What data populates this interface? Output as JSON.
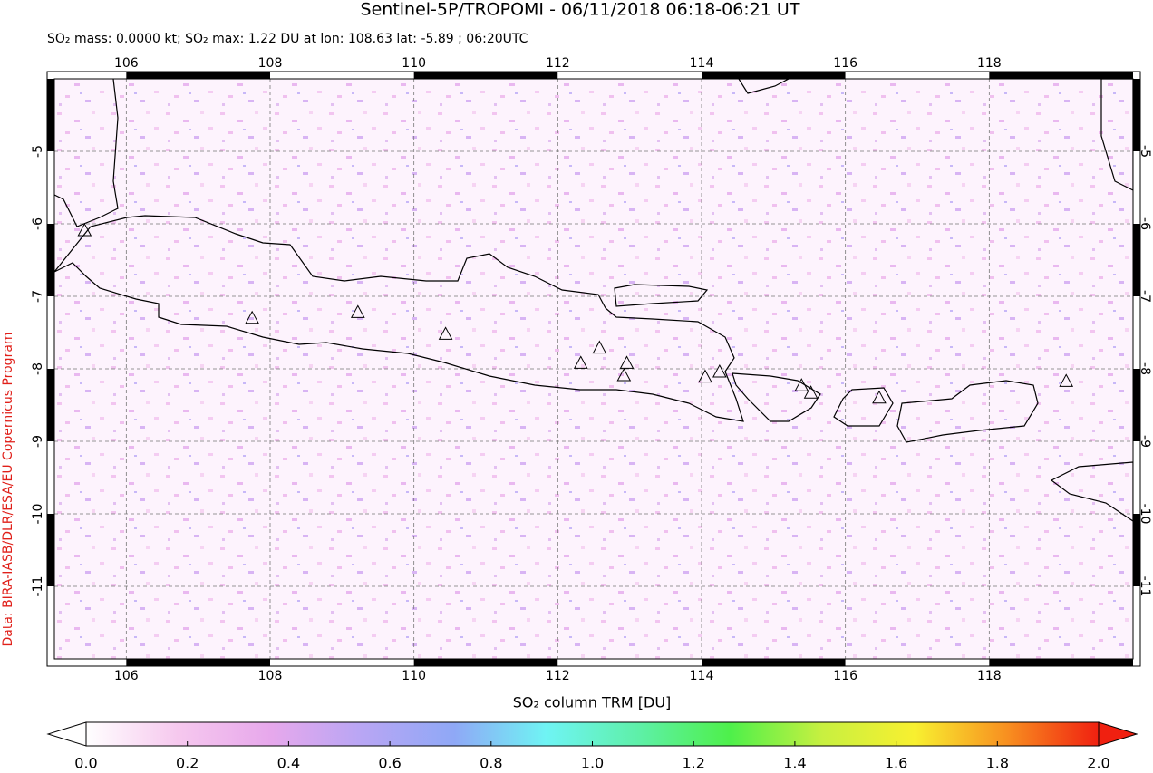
{
  "chart_data": {
    "type": "map",
    "title": "Sentinel-5P/TROPOMI - 06/11/2018 06:18-06:21 UT",
    "subtitle": "SO₂ mass: 0.0000 kt; SO₂ max: 1.22 DU at lon: 108.63 lat: -5.89 ; 06:20UTC",
    "credit": "Data: BIRA-IASB/DLR/ESA/EU Copernicus Program",
    "xlim": [
      105,
      120
    ],
    "ylim": [
      -12,
      -4
    ],
    "xticks": [
      106,
      108,
      110,
      112,
      114,
      116,
      118
    ],
    "yticks": [
      -5,
      -6,
      -7,
      -8,
      -9,
      -10,
      -11
    ],
    "grid": true,
    "volcanoes": {
      "x": [
        105.42,
        107.75,
        109.22,
        110.44,
        112.32,
        112.58,
        112.96,
        112.92,
        114.05,
        114.25,
        115.39,
        115.52,
        116.47,
        119.07
      ],
      "y": [
        -6.1,
        -7.31,
        -7.23,
        -7.53,
        -7.93,
        -7.72,
        -7.93,
        -8.1,
        -8.12,
        -8.05,
        -8.24,
        -8.34,
        -8.41,
        -8.18
      ]
    },
    "colorbar": {
      "label": "SO₂ column TRM [DU]",
      "lim": [
        0,
        2
      ],
      "ticks": [
        {
          "value": 0,
          "label": "0.0"
        },
        {
          "value": 0.2,
          "label": "0.2"
        },
        {
          "value": 0.4,
          "label": "0.4"
        },
        {
          "value": 0.6,
          "label": "0.6"
        },
        {
          "value": 0.8,
          "label": "0.8"
        },
        {
          "value": 1,
          "label": "1.0"
        },
        {
          "value": 1.2,
          "label": "1.2"
        },
        {
          "value": 1.4,
          "label": "1.4"
        },
        {
          "value": 1.6,
          "label": "1.6"
        },
        {
          "value": 1.8,
          "label": "1.8"
        },
        {
          "value": 2,
          "label": "2.0"
        }
      ],
      "colors": [
        "#ffffff",
        "#f6c8ee",
        "#e7a8ec",
        "#b8a6f4",
        "#8fa8f6",
        "#6ff4f4",
        "#5ef0a8",
        "#4ef04a",
        "#c8f040",
        "#f8f030",
        "#f89020",
        "#f02010"
      ]
    }
  }
}
